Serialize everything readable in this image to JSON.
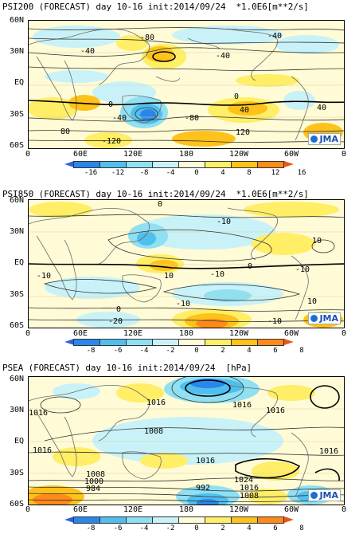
{
  "colors": {
    "neutral": "#fffbd6",
    "cool1": "#c8f2f8",
    "cool2": "#8fe0f2",
    "cool3": "#4fbfee",
    "cool4": "#2a86ea",
    "warm1": "#ffee66",
    "warm2": "#ffc21a",
    "warm3": "#ff8a1a",
    "warm4": "#e8561c",
    "land": "#6b6b6b",
    "contour": "#333333",
    "jma_blue": "#1a4fb0"
  },
  "lat_labels": [
    "60N",
    "30N",
    "EQ",
    "30S",
    "60S"
  ],
  "lon_labels": [
    "0",
    "60E",
    "120E",
    "180",
    "120W",
    "60W",
    "0"
  ],
  "jma_label": "JMA",
  "panels": [
    {
      "title": "PSI200 (FORECAST) day 10-16 init:2014/09/24  *1.0E6[m**2/s]",
      "colorbar": [
        "-16",
        "-12",
        "-8",
        "-4",
        "0",
        "4",
        "8",
        "12",
        "16"
      ],
      "contour_labels": [
        "-80",
        "-40",
        "-40",
        "-40",
        "0",
        "0",
        "-40",
        "40",
        "40",
        "-80",
        "80",
        "120",
        "-120"
      ]
    },
    {
      "title": "PSI850 (FORECAST) day 10-16 init:2014/09/24  *1.0E6[m**2/s]",
      "colorbar": [
        "-8",
        "-6",
        "-4",
        "-2",
        "0",
        "2",
        "4",
        "6",
        "8"
      ],
      "contour_labels": [
        "0",
        "-10",
        "10",
        "-10",
        "0",
        "10",
        "-10",
        "-10",
        "-10",
        "0",
        "-20",
        "10",
        "-10"
      ]
    },
    {
      "title": "PSEA (FORECAST) day 10-16 init:2014/09/24  [hPa]",
      "colorbar": [
        "-8",
        "-6",
        "-4",
        "-2",
        "0",
        "2",
        "4",
        "6",
        "8"
      ],
      "contour_labels": [
        "1016",
        "1016",
        "1016",
        "1008",
        "1016",
        "1016",
        "1016",
        "1016",
        "1008",
        "1000",
        "984",
        "992",
        "1024",
        "1016",
        "1008"
      ]
    }
  ]
}
